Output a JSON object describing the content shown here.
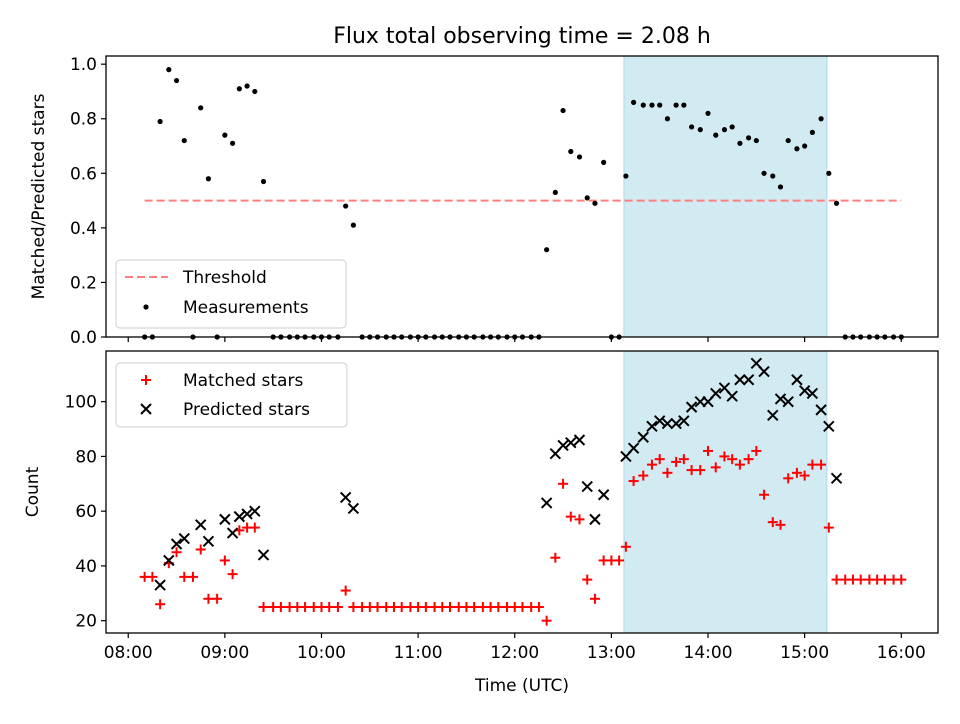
{
  "title": "Flux total observing time = 2.08 h",
  "colors": {
    "threshold": "#ff7f7f",
    "measurement": "#000000",
    "matched": "#ff0000",
    "predicted": "#000000",
    "span": "#add8e6"
  },
  "chart_data": [
    {
      "type": "scatter",
      "ylabel": "Matched/Predicted stars",
      "xlim": [
        7.77,
        16.38
      ],
      "ylim": [
        0,
        1.03
      ],
      "y_ticks": [
        0.0,
        0.2,
        0.4,
        0.6,
        0.8,
        1.0
      ],
      "y_tick_labels": [
        "0.0",
        "0.2",
        "0.4",
        "0.6",
        "0.8",
        "1.0"
      ],
      "highlight_span": [
        13.13,
        15.23
      ],
      "threshold": {
        "name": "Threshold",
        "y": 0.5,
        "x_range": [
          8.17,
          16.0
        ],
        "style": "dashed"
      },
      "legend": {
        "placement": "lower-left",
        "entries": [
          "Threshold",
          "Measurements"
        ]
      },
      "series": [
        {
          "name": "Measurements",
          "marker": "dot",
          "points": [
            [
              8.17,
              0
            ],
            [
              8.25,
              0
            ],
            [
              8.33,
              0.79
            ],
            [
              8.42,
              0.98
            ],
            [
              8.5,
              0.94
            ],
            [
              8.58,
              0.72
            ],
            [
              8.67,
              0
            ],
            [
              8.75,
              0.84
            ],
            [
              8.83,
              0.58
            ],
            [
              8.92,
              0
            ],
            [
              9.0,
              0.74
            ],
            [
              9.08,
              0.71
            ],
            [
              9.15,
              0.91
            ],
            [
              9.23,
              0.92
            ],
            [
              9.31,
              0.9
            ],
            [
              9.4,
              0.57
            ],
            [
              9.5,
              0
            ],
            [
              9.58,
              0
            ],
            [
              9.67,
              0
            ],
            [
              9.75,
              0
            ],
            [
              9.83,
              0
            ],
            [
              9.92,
              0
            ],
            [
              10.0,
              0
            ],
            [
              10.08,
              0
            ],
            [
              10.17,
              0
            ],
            [
              10.25,
              0.48
            ],
            [
              10.33,
              0.41
            ],
            [
              10.42,
              0
            ],
            [
              10.5,
              0
            ],
            [
              10.58,
              0
            ],
            [
              10.67,
              0
            ],
            [
              10.75,
              0
            ],
            [
              10.83,
              0
            ],
            [
              10.92,
              0
            ],
            [
              11.0,
              0
            ],
            [
              11.08,
              0
            ],
            [
              11.17,
              0
            ],
            [
              11.25,
              0
            ],
            [
              11.33,
              0
            ],
            [
              11.42,
              0
            ],
            [
              11.5,
              0
            ],
            [
              11.58,
              0
            ],
            [
              11.67,
              0
            ],
            [
              11.75,
              0
            ],
            [
              11.83,
              0
            ],
            [
              11.92,
              0
            ],
            [
              12.0,
              0
            ],
            [
              12.08,
              0
            ],
            [
              12.17,
              0
            ],
            [
              12.25,
              0
            ],
            [
              12.33,
              0.32
            ],
            [
              12.42,
              0.53
            ],
            [
              12.5,
              0.83
            ],
            [
              12.58,
              0.68
            ],
            [
              12.67,
              0.66
            ],
            [
              12.75,
              0.51
            ],
            [
              12.83,
              0.49
            ],
            [
              12.92,
              0.64
            ],
            [
              13.0,
              0
            ],
            [
              13.08,
              0
            ],
            [
              13.15,
              0.59
            ],
            [
              13.23,
              0.86
            ],
            [
              13.33,
              0.85
            ],
            [
              13.42,
              0.85
            ],
            [
              13.5,
              0.85
            ],
            [
              13.58,
              0.8
            ],
            [
              13.67,
              0.85
            ],
            [
              13.75,
              0.85
            ],
            [
              13.83,
              0.77
            ],
            [
              13.92,
              0.76
            ],
            [
              14.0,
              0.82
            ],
            [
              14.08,
              0.74
            ],
            [
              14.17,
              0.76
            ],
            [
              14.25,
              0.77
            ],
            [
              14.33,
              0.71
            ],
            [
              14.42,
              0.73
            ],
            [
              14.5,
              0.72
            ],
            [
              14.58,
              0.6
            ],
            [
              14.67,
              0.59
            ],
            [
              14.75,
              0.55
            ],
            [
              14.83,
              0.72
            ],
            [
              14.92,
              0.69
            ],
            [
              15.0,
              0.7
            ],
            [
              15.08,
              0.75
            ],
            [
              15.17,
              0.8
            ],
            [
              15.25,
              0.6
            ],
            [
              15.33,
              0.49
            ],
            [
              15.42,
              0
            ],
            [
              15.5,
              0
            ],
            [
              15.58,
              0
            ],
            [
              15.67,
              0
            ],
            [
              15.75,
              0
            ],
            [
              15.83,
              0
            ],
            [
              15.92,
              0
            ],
            [
              16.0,
              0
            ]
          ]
        }
      ]
    },
    {
      "type": "scatter",
      "ylabel": "Count",
      "xlabel": "Time (UTC)",
      "xlim": [
        7.77,
        16.38
      ],
      "ylim": [
        15.5,
        118.5
      ],
      "y_ticks": [
        20,
        40,
        60,
        80,
        100
      ],
      "y_tick_labels": [
        "20",
        "40",
        "60",
        "80",
        "100"
      ],
      "x_ticks": [
        8,
        9,
        10,
        11,
        12,
        13,
        14,
        15,
        16
      ],
      "x_tick_labels": [
        "08:00",
        "09:00",
        "10:00",
        "11:00",
        "12:00",
        "13:00",
        "14:00",
        "15:00",
        "16:00"
      ],
      "highlight_span": [
        13.13,
        15.23
      ],
      "legend": {
        "placement": "upper-left",
        "entries": [
          "Matched stars",
          "Predicted stars"
        ]
      },
      "series": [
        {
          "name": "Matched stars",
          "marker": "plus",
          "points": [
            [
              8.17,
              36
            ],
            [
              8.25,
              36
            ],
            [
              8.33,
              26
            ],
            [
              8.42,
              41
            ],
            [
              8.5,
              45
            ],
            [
              8.58,
              36
            ],
            [
              8.67,
              36
            ],
            [
              8.75,
              46
            ],
            [
              8.83,
              28
            ],
            [
              8.92,
              28
            ],
            [
              9.0,
              42
            ],
            [
              9.08,
              37
            ],
            [
              9.15,
              53
            ],
            [
              9.23,
              54
            ],
            [
              9.31,
              54
            ],
            [
              9.4,
              25
            ],
            [
              9.5,
              25
            ],
            [
              9.58,
              25
            ],
            [
              9.67,
              25
            ],
            [
              9.75,
              25
            ],
            [
              9.83,
              25
            ],
            [
              9.92,
              25
            ],
            [
              10.0,
              25
            ],
            [
              10.08,
              25
            ],
            [
              10.17,
              25
            ],
            [
              10.25,
              31
            ],
            [
              10.33,
              25
            ],
            [
              10.42,
              25
            ],
            [
              10.5,
              25
            ],
            [
              10.58,
              25
            ],
            [
              10.67,
              25
            ],
            [
              10.75,
              25
            ],
            [
              10.83,
              25
            ],
            [
              10.92,
              25
            ],
            [
              11.0,
              25
            ],
            [
              11.08,
              25
            ],
            [
              11.17,
              25
            ],
            [
              11.25,
              25
            ],
            [
              11.33,
              25
            ],
            [
              11.42,
              25
            ],
            [
              11.5,
              25
            ],
            [
              11.58,
              25
            ],
            [
              11.67,
              25
            ],
            [
              11.75,
              25
            ],
            [
              11.83,
              25
            ],
            [
              11.92,
              25
            ],
            [
              12.0,
              25
            ],
            [
              12.08,
              25
            ],
            [
              12.17,
              25
            ],
            [
              12.25,
              25
            ],
            [
              12.33,
              20
            ],
            [
              12.42,
              43
            ],
            [
              12.5,
              70
            ],
            [
              12.58,
              58
            ],
            [
              12.67,
              57
            ],
            [
              12.75,
              35
            ],
            [
              12.83,
              28
            ],
            [
              12.92,
              42
            ],
            [
              13.0,
              42
            ],
            [
              13.08,
              42
            ],
            [
              13.15,
              47
            ],
            [
              13.23,
              71
            ],
            [
              13.33,
              73
            ],
            [
              13.42,
              77
            ],
            [
              13.5,
              79
            ],
            [
              13.58,
              74
            ],
            [
              13.67,
              78
            ],
            [
              13.75,
              79
            ],
            [
              13.83,
              75
            ],
            [
              13.92,
              75
            ],
            [
              14.0,
              82
            ],
            [
              14.08,
              76
            ],
            [
              14.17,
              80
            ],
            [
              14.25,
              79
            ],
            [
              14.33,
              77
            ],
            [
              14.42,
              79
            ],
            [
              14.5,
              82
            ],
            [
              14.58,
              66
            ],
            [
              14.67,
              56
            ],
            [
              14.75,
              55
            ],
            [
              14.83,
              72
            ],
            [
              14.92,
              74
            ],
            [
              15.0,
              73
            ],
            [
              15.08,
              77
            ],
            [
              15.17,
              77
            ],
            [
              15.25,
              54
            ],
            [
              15.33,
              35
            ],
            [
              15.42,
              35
            ],
            [
              15.5,
              35
            ],
            [
              15.58,
              35
            ],
            [
              15.67,
              35
            ],
            [
              15.75,
              35
            ],
            [
              15.83,
              35
            ],
            [
              15.92,
              35
            ],
            [
              16.0,
              35
            ]
          ]
        },
        {
          "name": "Predicted stars",
          "marker": "x",
          "points": [
            [
              8.33,
              33
            ],
            [
              8.42,
              42
            ],
            [
              8.5,
              48
            ],
            [
              8.58,
              50
            ],
            [
              8.75,
              55
            ],
            [
              8.83,
              49
            ],
            [
              9.0,
              57
            ],
            [
              9.08,
              52
            ],
            [
              9.15,
              58
            ],
            [
              9.23,
              59
            ],
            [
              9.31,
              60
            ],
            [
              9.4,
              44
            ],
            [
              10.25,
              65
            ],
            [
              10.33,
              61
            ],
            [
              12.33,
              63
            ],
            [
              12.42,
              81
            ],
            [
              12.5,
              84
            ],
            [
              12.58,
              85
            ],
            [
              12.67,
              86
            ],
            [
              12.75,
              69
            ],
            [
              12.83,
              57
            ],
            [
              12.92,
              66
            ],
            [
              13.15,
              80
            ],
            [
              13.23,
              83
            ],
            [
              13.33,
              87
            ],
            [
              13.42,
              91
            ],
            [
              13.5,
              93
            ],
            [
              13.58,
              92
            ],
            [
              13.67,
              92
            ],
            [
              13.75,
              93
            ],
            [
              13.83,
              98
            ],
            [
              13.92,
              100
            ],
            [
              14.0,
              100
            ],
            [
              14.08,
              103
            ],
            [
              14.17,
              105
            ],
            [
              14.25,
              102
            ],
            [
              14.33,
              108
            ],
            [
              14.42,
              108
            ],
            [
              14.5,
              114
            ],
            [
              14.58,
              111
            ],
            [
              14.67,
              95
            ],
            [
              14.75,
              101
            ],
            [
              14.83,
              100
            ],
            [
              14.92,
              108
            ],
            [
              15.0,
              104
            ],
            [
              15.08,
              103
            ],
            [
              15.17,
              97
            ],
            [
              15.25,
              91
            ],
            [
              15.33,
              72
            ]
          ]
        }
      ]
    }
  ]
}
